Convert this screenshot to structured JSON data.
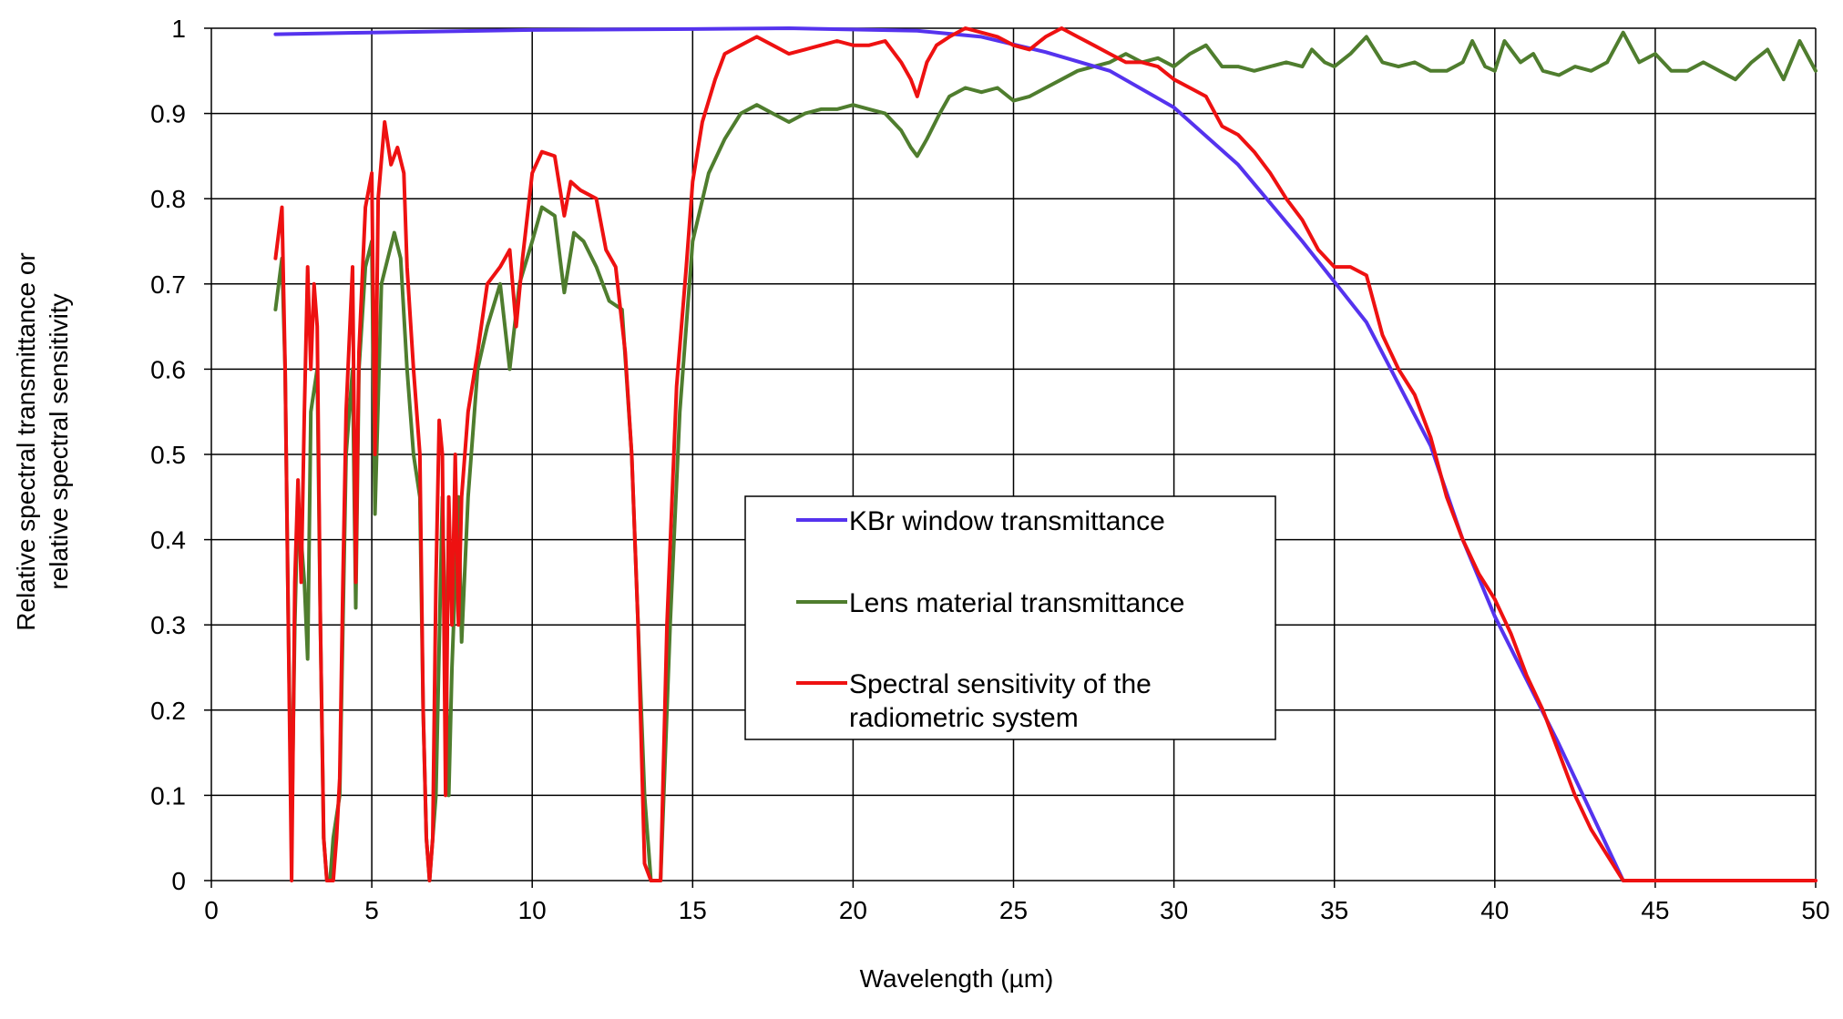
{
  "chart_data": {
    "type": "line",
    "xlabel": "Wavelength (µm)",
    "ylabel_lines": [
      "Relative spectral transmittance or",
      "relative spectral sensitivity"
    ],
    "xlim": [
      0,
      50
    ],
    "ylim": [
      0,
      1
    ],
    "xticks": [
      0,
      5,
      10,
      15,
      20,
      25,
      30,
      35,
      40,
      45,
      50
    ],
    "xtick_labels": [
      "0",
      "5",
      "10",
      "15",
      "20",
      "25",
      "30",
      "35",
      "40",
      "45",
      "50"
    ],
    "yticks": [
      0,
      0.1,
      0.2,
      0.3,
      0.4,
      0.5,
      0.6,
      0.7,
      0.8,
      0.9,
      1
    ],
    "ytick_labels": [
      "0",
      "0.1",
      "0.2",
      "0.3",
      "0.4",
      "0.5",
      "0.6",
      "0.7",
      "0.8",
      "0.9",
      "1"
    ],
    "grid": true,
    "legend_position": "center",
    "series": [
      {
        "name": "KBr window transmittance",
        "color": "#5533ee",
        "points": [
          [
            2,
            0.993
          ],
          [
            5,
            0.995
          ],
          [
            10,
            0.998
          ],
          [
            15,
            0.999
          ],
          [
            18,
            1.0
          ],
          [
            22,
            0.997
          ],
          [
            24,
            0.99
          ],
          [
            26,
            0.972
          ],
          [
            28,
            0.95
          ],
          [
            30,
            0.907
          ],
          [
            32,
            0.84
          ],
          [
            34,
            0.75
          ],
          [
            36,
            0.655
          ],
          [
            38,
            0.51
          ],
          [
            39,
            0.4
          ],
          [
            40,
            0.31
          ],
          [
            41,
            0.235
          ],
          [
            42,
            0.16
          ],
          [
            43,
            0.08
          ],
          [
            44,
            0.0
          ],
          [
            50,
            0.0
          ]
        ]
      },
      {
        "name": "Lens material transmittance",
        "color": "#4f7d2e",
        "points": [
          [
            2,
            0.67
          ],
          [
            2.2,
            0.73
          ],
          [
            2.3,
            0.6
          ],
          [
            2.4,
            0.3
          ],
          [
            2.5,
            0.05
          ],
          [
            2.6,
            0.3
          ],
          [
            2.7,
            0.45
          ],
          [
            2.9,
            0.35
          ],
          [
            3.0,
            0.26
          ],
          [
            3.1,
            0.55
          ],
          [
            3.3,
            0.6
          ],
          [
            3.4,
            0.3
          ],
          [
            3.5,
            0.05
          ],
          [
            3.6,
            0.0
          ],
          [
            3.7,
            0.0
          ],
          [
            3.8,
            0.05
          ],
          [
            4.0,
            0.1
          ],
          [
            4.1,
            0.3
          ],
          [
            4.2,
            0.5
          ],
          [
            4.4,
            0.6
          ],
          [
            4.5,
            0.32
          ],
          [
            4.6,
            0.6
          ],
          [
            4.8,
            0.72
          ],
          [
            5.0,
            0.75
          ],
          [
            5.1,
            0.43
          ],
          [
            5.3,
            0.7
          ],
          [
            5.5,
            0.73
          ],
          [
            5.7,
            0.76
          ],
          [
            5.9,
            0.73
          ],
          [
            6.1,
            0.6
          ],
          [
            6.3,
            0.5
          ],
          [
            6.5,
            0.45
          ],
          [
            6.6,
            0.2
          ],
          [
            6.7,
            0.05
          ],
          [
            6.8,
            0.0
          ],
          [
            7.0,
            0.1
          ],
          [
            7.2,
            0.45
          ],
          [
            7.4,
            0.1
          ],
          [
            7.5,
            0.25
          ],
          [
            7.7,
            0.45
          ],
          [
            7.8,
            0.28
          ],
          [
            8.0,
            0.45
          ],
          [
            8.3,
            0.6
          ],
          [
            8.6,
            0.65
          ],
          [
            9.0,
            0.7
          ],
          [
            9.3,
            0.6
          ],
          [
            9.6,
            0.7
          ],
          [
            10.0,
            0.75
          ],
          [
            10.3,
            0.79
          ],
          [
            10.7,
            0.78
          ],
          [
            11.0,
            0.69
          ],
          [
            11.3,
            0.76
          ],
          [
            11.6,
            0.75
          ],
          [
            12.0,
            0.72
          ],
          [
            12.4,
            0.68
          ],
          [
            12.8,
            0.67
          ],
          [
            13.1,
            0.5
          ],
          [
            13.3,
            0.3
          ],
          [
            13.5,
            0.1
          ],
          [
            13.7,
            0.0
          ],
          [
            14.0,
            0.0
          ],
          [
            14.3,
            0.3
          ],
          [
            14.6,
            0.55
          ],
          [
            15.0,
            0.75
          ],
          [
            15.5,
            0.83
          ],
          [
            16.0,
            0.87
          ],
          [
            16.5,
            0.9
          ],
          [
            17.0,
            0.91
          ],
          [
            17.5,
            0.9
          ],
          [
            18.0,
            0.89
          ],
          [
            18.5,
            0.9
          ],
          [
            19.0,
            0.905
          ],
          [
            19.5,
            0.905
          ],
          [
            20.0,
            0.91
          ],
          [
            20.5,
            0.905
          ],
          [
            21.0,
            0.9
          ],
          [
            21.5,
            0.88
          ],
          [
            21.8,
            0.86
          ],
          [
            22.0,
            0.85
          ],
          [
            22.3,
            0.87
          ],
          [
            22.7,
            0.9
          ],
          [
            23.0,
            0.92
          ],
          [
            23.5,
            0.93
          ],
          [
            24.0,
            0.925
          ],
          [
            24.5,
            0.93
          ],
          [
            25.0,
            0.915
          ],
          [
            25.5,
            0.92
          ],
          [
            26.0,
            0.93
          ],
          [
            26.5,
            0.94
          ],
          [
            27.0,
            0.95
          ],
          [
            27.5,
            0.955
          ],
          [
            28.0,
            0.96
          ],
          [
            28.5,
            0.97
          ],
          [
            29.0,
            0.96
          ],
          [
            29.5,
            0.965
          ],
          [
            30.0,
            0.955
          ],
          [
            30.5,
            0.97
          ],
          [
            31.0,
            0.98
          ],
          [
            31.5,
            0.955
          ],
          [
            32.0,
            0.955
          ],
          [
            32.5,
            0.95
          ],
          [
            33.0,
            0.955
          ],
          [
            33.5,
            0.96
          ],
          [
            34.0,
            0.955
          ],
          [
            34.3,
            0.975
          ],
          [
            34.7,
            0.96
          ],
          [
            35.0,
            0.955
          ],
          [
            35.5,
            0.97
          ],
          [
            36.0,
            0.99
          ],
          [
            36.5,
            0.96
          ],
          [
            37.0,
            0.955
          ],
          [
            37.5,
            0.96
          ],
          [
            38.0,
            0.95
          ],
          [
            38.5,
            0.95
          ],
          [
            39.0,
            0.96
          ],
          [
            39.3,
            0.985
          ],
          [
            39.7,
            0.955
          ],
          [
            40.0,
            0.95
          ],
          [
            40.3,
            0.985
          ],
          [
            40.8,
            0.96
          ],
          [
            41.2,
            0.97
          ],
          [
            41.5,
            0.95
          ],
          [
            42.0,
            0.945
          ],
          [
            42.5,
            0.955
          ],
          [
            43.0,
            0.95
          ],
          [
            43.5,
            0.96
          ],
          [
            44.0,
            0.995
          ],
          [
            44.5,
            0.96
          ],
          [
            45.0,
            0.97
          ],
          [
            45.5,
            0.95
          ],
          [
            46.0,
            0.95
          ],
          [
            46.5,
            0.96
          ],
          [
            47.0,
            0.95
          ],
          [
            47.5,
            0.94
          ],
          [
            48.0,
            0.96
          ],
          [
            48.5,
            0.975
          ],
          [
            49.0,
            0.94
          ],
          [
            49.5,
            0.985
          ],
          [
            50.0,
            0.95
          ]
        ]
      },
      {
        "name": "Spectral sensitivity of the radiometric system",
        "color": "#ee1111",
        "points": [
          [
            2,
            0.73
          ],
          [
            2.2,
            0.79
          ],
          [
            2.3,
            0.6
          ],
          [
            2.4,
            0.3
          ],
          [
            2.5,
            0.0
          ],
          [
            2.6,
            0.35
          ],
          [
            2.7,
            0.47
          ],
          [
            2.8,
            0.35
          ],
          [
            2.9,
            0.55
          ],
          [
            3.0,
            0.72
          ],
          [
            3.1,
            0.6
          ],
          [
            3.2,
            0.7
          ],
          [
            3.3,
            0.65
          ],
          [
            3.4,
            0.3
          ],
          [
            3.5,
            0.05
          ],
          [
            3.6,
            0.0
          ],
          [
            3.8,
            0.0
          ],
          [
            3.9,
            0.05
          ],
          [
            4.0,
            0.12
          ],
          [
            4.1,
            0.35
          ],
          [
            4.2,
            0.55
          ],
          [
            4.4,
            0.72
          ],
          [
            4.5,
            0.35
          ],
          [
            4.6,
            0.62
          ],
          [
            4.8,
            0.79
          ],
          [
            5.0,
            0.83
          ],
          [
            5.1,
            0.5
          ],
          [
            5.2,
            0.8
          ],
          [
            5.4,
            0.89
          ],
          [
            5.6,
            0.84
          ],
          [
            5.8,
            0.86
          ],
          [
            6.0,
            0.83
          ],
          [
            6.1,
            0.72
          ],
          [
            6.3,
            0.6
          ],
          [
            6.5,
            0.5
          ],
          [
            6.6,
            0.2
          ],
          [
            6.7,
            0.05
          ],
          [
            6.8,
            0.0
          ],
          [
            6.9,
            0.05
          ],
          [
            7.0,
            0.35
          ],
          [
            7.1,
            0.54
          ],
          [
            7.2,
            0.5
          ],
          [
            7.3,
            0.1
          ],
          [
            7.4,
            0.45
          ],
          [
            7.5,
            0.3
          ],
          [
            7.6,
            0.5
          ],
          [
            7.7,
            0.3
          ],
          [
            7.8,
            0.45
          ],
          [
            8.0,
            0.55
          ],
          [
            8.3,
            0.62
          ],
          [
            8.6,
            0.7
          ],
          [
            9.0,
            0.72
          ],
          [
            9.3,
            0.74
          ],
          [
            9.5,
            0.65
          ],
          [
            9.7,
            0.73
          ],
          [
            10.0,
            0.83
          ],
          [
            10.3,
            0.855
          ],
          [
            10.7,
            0.85
          ],
          [
            11.0,
            0.78
          ],
          [
            11.2,
            0.82
          ],
          [
            11.5,
            0.81
          ],
          [
            12.0,
            0.8
          ],
          [
            12.3,
            0.74
          ],
          [
            12.6,
            0.72
          ],
          [
            12.9,
            0.62
          ],
          [
            13.1,
            0.5
          ],
          [
            13.3,
            0.3
          ],
          [
            13.5,
            0.02
          ],
          [
            13.7,
            0.0
          ],
          [
            14.0,
            0.0
          ],
          [
            14.2,
            0.3
          ],
          [
            14.5,
            0.58
          ],
          [
            14.8,
            0.72
          ],
          [
            15.0,
            0.82
          ],
          [
            15.3,
            0.89
          ],
          [
            15.7,
            0.94
          ],
          [
            16.0,
            0.97
          ],
          [
            16.5,
            0.98
          ],
          [
            17.0,
            0.99
          ],
          [
            17.5,
            0.98
          ],
          [
            18.0,
            0.97
          ],
          [
            18.5,
            0.975
          ],
          [
            19.0,
            0.98
          ],
          [
            19.5,
            0.985
          ],
          [
            20.0,
            0.98
          ],
          [
            20.5,
            0.98
          ],
          [
            21.0,
            0.985
          ],
          [
            21.5,
            0.96
          ],
          [
            21.8,
            0.94
          ],
          [
            22.0,
            0.92
          ],
          [
            22.3,
            0.96
          ],
          [
            22.6,
            0.98
          ],
          [
            23.0,
            0.99
          ],
          [
            23.5,
            1.0
          ],
          [
            24.0,
            0.995
          ],
          [
            24.5,
            0.99
          ],
          [
            25.0,
            0.98
          ],
          [
            25.5,
            0.975
          ],
          [
            26.0,
            0.99
          ],
          [
            26.5,
            1.0
          ],
          [
            27.0,
            0.99
          ],
          [
            27.5,
            0.98
          ],
          [
            28.0,
            0.97
          ],
          [
            28.5,
            0.96
          ],
          [
            29.0,
            0.96
          ],
          [
            29.5,
            0.955
          ],
          [
            30.0,
            0.94
          ],
          [
            30.5,
            0.93
          ],
          [
            31.0,
            0.92
          ],
          [
            31.5,
            0.885
          ],
          [
            32.0,
            0.875
          ],
          [
            32.5,
            0.855
          ],
          [
            33.0,
            0.83
          ],
          [
            33.5,
            0.8
          ],
          [
            34.0,
            0.775
          ],
          [
            34.5,
            0.74
          ],
          [
            35.0,
            0.72
          ],
          [
            35.5,
            0.72
          ],
          [
            36.0,
            0.71
          ],
          [
            36.5,
            0.64
          ],
          [
            37.0,
            0.6
          ],
          [
            37.5,
            0.57
          ],
          [
            38.0,
            0.52
          ],
          [
            38.5,
            0.45
          ],
          [
            39.0,
            0.4
          ],
          [
            39.5,
            0.36
          ],
          [
            40.0,
            0.33
          ],
          [
            40.5,
            0.29
          ],
          [
            41.0,
            0.24
          ],
          [
            41.5,
            0.2
          ],
          [
            42.0,
            0.15
          ],
          [
            42.5,
            0.1
          ],
          [
            43.0,
            0.06
          ],
          [
            43.5,
            0.03
          ],
          [
            44.0,
            0.0
          ],
          [
            50.0,
            0.0
          ]
        ]
      }
    ]
  },
  "legend": {
    "item1": "KBr window transmittance",
    "item2": "Lens material transmittance",
    "item3_line1": "Spectral sensitivity of the",
    "item3_line2": "radiometric system"
  }
}
